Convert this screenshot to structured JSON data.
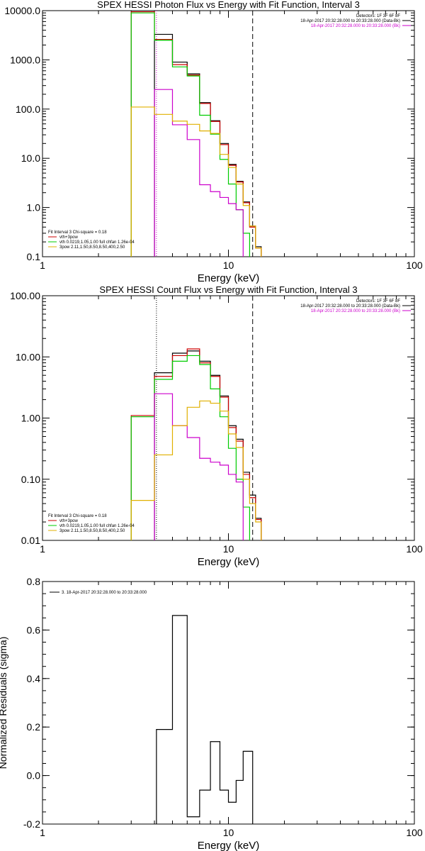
{
  "chart_data": [
    {
      "type": "line",
      "title": "SPEX HESSI Photon Flux vs Energy with Fit Function, Interval 3",
      "xlabel": "Energy (keV)",
      "ylabel": "",
      "xscale": "log",
      "yscale": "log",
      "xlim": [
        1,
        100
      ],
      "ylim": [
        0.1,
        10000
      ],
      "xticks": [
        "1",
        "10",
        "100"
      ],
      "yticks": [
        "0.1",
        "1.0",
        "10.0",
        "100.0",
        "1000.0",
        "10000.0"
      ],
      "grid": false,
      "legend_position": "top-right",
      "header_lines": [
        "Detectors: 1F 3F 6F 8F",
        "18-Apr-2017 20:32:28.000 to 20:33:28.000 (Data-Bk)",
        "18-Apr-2017 20:32:28.000 to 20:33:28.000 (Bk)"
      ],
      "header_colors": [
        "#000000",
        "#000000",
        "#cc00cc"
      ],
      "fit_legend": {
        "title": "Fit Interval 3   Chi-square = 0.18",
        "entries": [
          {
            "label": "vth+3pow",
            "color": "#cc0000"
          },
          {
            "label": "vth 0.0219,1.05,1.00  full chfan 1.26e-04",
            "color": "#00cc00"
          },
          {
            "label": "3pow 2.11,1.50,8.50,8.50,400,2.50",
            "color": "#e0b000"
          }
        ]
      },
      "vlines": [
        {
          "x": 4.1,
          "style": "dotted",
          "color": "#cc00cc"
        },
        {
          "x": 13.5,
          "style": "dashed",
          "color": "#000000"
        }
      ],
      "edges": [
        3,
        4,
        5,
        6,
        7,
        8,
        9,
        10,
        11,
        12,
        13,
        14,
        15,
        16.5
      ],
      "series": [
        {
          "color": "#000000",
          "values": [
            null,
            3300,
            900,
            520,
            135,
            58,
            20,
            7.5,
            3.4,
            1.3,
            0.42,
            0.16,
            null
          ]
        },
        {
          "color": "#cc0000",
          "values": [
            9500,
            2600,
            800,
            490,
            130,
            56,
            19,
            7.2,
            3.3,
            1.25,
            0.4,
            0.15,
            null
          ]
        },
        {
          "color": "#00cc00",
          "values": [
            9000,
            2500,
            720,
            470,
            75,
            31,
            9.5,
            3.0,
            0.9,
            0.3,
            null,
            null,
            null
          ]
        },
        {
          "color": "#cc00cc",
          "values": [
            null,
            250,
            48,
            24,
            2.9,
            2.1,
            1.6,
            1.2,
            0.9,
            null,
            null,
            null,
            null
          ]
        },
        {
          "color": "#e0b000",
          "values": [
            110,
            78,
            57,
            49,
            36,
            32,
            12,
            6.5,
            3.0,
            1.1,
            0.42,
            0.15,
            null
          ]
        }
      ]
    },
    {
      "type": "line",
      "title": "SPEX HESSI Count Flux vs Energy with Fit Function, Interval 3",
      "xlabel": "Energy (keV)",
      "ylabel": "",
      "xscale": "log",
      "yscale": "log",
      "xlim": [
        1,
        100
      ],
      "ylim": [
        0.01,
        100
      ],
      "xticks": [
        "1",
        "10",
        "100"
      ],
      "yticks": [
        "0.01",
        "0.10",
        "1.00",
        "10.00",
        "100.00"
      ],
      "grid": false,
      "legend_position": "top-right",
      "header_lines": [
        "Detectors: 1F 3F 6F 8F",
        "18-Apr-2017 20:32:28.000 to 20:33:28.000 (Data-Bk)",
        "18-Apr-2017 20:32:28.000 to 20:33:28.000 (Bk)"
      ],
      "header_colors": [
        "#000000",
        "#000000",
        "#cc00cc"
      ],
      "fit_legend": {
        "title": "Fit Interval 3   Chi-square = 0.18",
        "entries": [
          {
            "label": "vth+3pow",
            "color": "#cc0000"
          },
          {
            "label": "vth 0.0219,1.05,1.00  full chfan 1.26e-04",
            "color": "#00cc00"
          },
          {
            "label": "3pow 2.11,1.50,8.50,8.50,400,2.50",
            "color": "#e0b000"
          }
        ]
      },
      "vlines": [
        {
          "x": 4.1,
          "style": "dotted",
          "color": "#000000"
        },
        {
          "x": 13.5,
          "style": "dashed",
          "color": "#000000"
        }
      ],
      "edges": [
        3,
        4,
        5,
        6,
        7,
        8,
        9,
        10,
        11,
        12,
        13,
        14,
        15,
        16.5
      ],
      "series": [
        {
          "color": "#000000",
          "values": [
            null,
            5.5,
            11.5,
            12.5,
            8.5,
            5.0,
            2.3,
            0.75,
            0.45,
            0.13,
            0.055,
            0.023,
            null
          ]
        },
        {
          "color": "#cc0000",
          "values": [
            1.1,
            4.8,
            10.5,
            13.5,
            8.0,
            4.8,
            2.2,
            0.7,
            0.42,
            0.12,
            0.05,
            0.022,
            null
          ]
        },
        {
          "color": "#00cc00",
          "values": [
            1.05,
            4.3,
            8.5,
            10.5,
            7.5,
            3.0,
            1.05,
            0.32,
            0.1,
            0.035,
            null,
            null,
            null
          ]
        },
        {
          "color": "#cc00cc",
          "values": [
            null,
            2.5,
            0.75,
            0.48,
            0.22,
            0.19,
            0.17,
            0.12,
            0.09,
            null,
            null,
            null,
            null
          ]
        },
        {
          "color": "#e0b000",
          "values": [
            0.045,
            0.25,
            0.75,
            1.5,
            1.9,
            1.75,
            1.3,
            0.55,
            0.33,
            0.1,
            0.04,
            0.02,
            null
          ]
        }
      ]
    },
    {
      "type": "line",
      "title": "",
      "xlabel": "Energy (keV)",
      "ylabel": "Normalized Residuals (sigma)",
      "xscale": "log",
      "yscale": "linear",
      "xlim": [
        1,
        100
      ],
      "ylim": [
        -0.2,
        0.8
      ],
      "xticks": [
        "1",
        "10",
        "100"
      ],
      "yticks": [
        "-0.2",
        "0.0",
        "0.2",
        "0.4",
        "0.6",
        "0.8"
      ],
      "grid": false,
      "legend_position": "top-left",
      "legend": [
        {
          "label": "3. 18-Apr-2017 20:32:28.000 to 20:33:28.000",
          "color": "#000000"
        }
      ],
      "edges": [
        4.1,
        5,
        6,
        7,
        8,
        9,
        10,
        11,
        12,
        13.5
      ],
      "series": [
        {
          "color": "#000000",
          "values": [
            0.19,
            0.66,
            -0.17,
            -0.06,
            0.14,
            -0.06,
            -0.11,
            -0.02,
            0.1
          ]
        }
      ]
    }
  ]
}
